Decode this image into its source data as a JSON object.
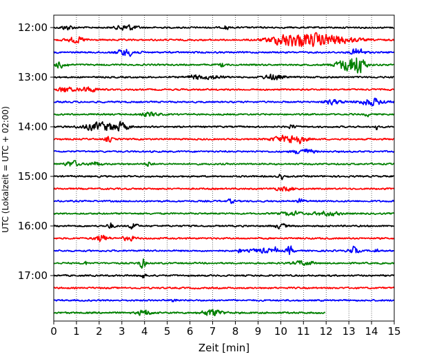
{
  "chart_data": {
    "type": "line",
    "chart_kind": "helicorder / seismogram drum plot",
    "title": "",
    "xlabel": "Zeit  [min]",
    "ylabel": "UTC (Lokalzeit = UTC + 02:00)",
    "xlim": [
      0,
      15
    ],
    "x_ticks": [
      "0",
      "1",
      "2",
      "3",
      "4",
      "5",
      "6",
      "7",
      "8",
      "9",
      "10",
      "11",
      "12",
      "13",
      "14",
      "15"
    ],
    "y_tick_labels": [
      "12:00",
      "13:00",
      "14:00",
      "15:00",
      "16:00",
      "17:00"
    ],
    "vertical_grid": "dotted, every 1 min",
    "trace_interval_minutes": 15,
    "trace_start": "12:00",
    "trace_colors": [
      "#000000",
      "#ff0000",
      "#0000ff",
      "#008000"
    ],
    "rows": [
      {
        "start": "12:00",
        "color": "#000000",
        "end_min": 15,
        "events": [
          [
            3.2,
            0.3,
            1.8
          ],
          [
            7.6,
            0.05,
            2.6
          ],
          [
            0.6,
            0.2,
            1.3
          ]
        ]
      },
      {
        "start": "12:15",
        "color": "#ff0000",
        "end_min": 15,
        "events": [
          [
            11.8,
            0.9,
            3.5
          ],
          [
            10.3,
            0.6,
            3.0
          ],
          [
            1.0,
            0.3,
            1.6
          ]
        ]
      },
      {
        "start": "12:30",
        "color": "#0000ff",
        "end_min": 15,
        "events": [
          [
            3.2,
            0.3,
            2.0
          ],
          [
            13.4,
            0.2,
            2.5
          ]
        ]
      },
      {
        "start": "12:45",
        "color": "#008000",
        "end_min": 15,
        "events": [
          [
            13.0,
            0.4,
            3.5
          ],
          [
            13.4,
            0.2,
            4.5
          ],
          [
            0.3,
            0.2,
            1.8
          ],
          [
            7.4,
            0.05,
            1.8
          ]
        ]
      },
      {
        "start": "13:00",
        "color": "#000000",
        "end_min": 15,
        "events": [
          [
            9.7,
            0.3,
            1.6
          ],
          [
            6.2,
            0.2,
            1.4
          ],
          [
            7.0,
            0.3,
            1.2
          ]
        ]
      },
      {
        "start": "13:15",
        "color": "#ff0000",
        "end_min": 15,
        "events": [
          [
            0.5,
            0.2,
            1.8
          ],
          [
            1.5,
            0.3,
            1.5
          ]
        ]
      },
      {
        "start": "13:30",
        "color": "#0000ff",
        "end_min": 15,
        "events": [
          [
            14.0,
            0.4,
            2.0
          ],
          [
            12.3,
            0.3,
            1.3
          ]
        ]
      },
      {
        "start": "13:45",
        "color": "#008000",
        "end_min": 15,
        "events": [
          [
            13.8,
            0.05,
            1.5
          ],
          [
            4.2,
            0.3,
            1.2
          ]
        ]
      },
      {
        "start": "14:00",
        "color": "#000000",
        "end_min": 15,
        "events": [
          [
            2.0,
            0.5,
            2.4
          ],
          [
            2.9,
            0.3,
            2.0
          ],
          [
            14.2,
            0.05,
            1.8
          ],
          [
            10.5,
            0.1,
            1.3
          ]
        ]
      },
      {
        "start": "14:15",
        "color": "#ff0000",
        "end_min": 15,
        "events": [
          [
            10.7,
            0.3,
            2.2
          ],
          [
            10.1,
            0.4,
            1.5
          ],
          [
            2.4,
            0.1,
            1.8
          ]
        ]
      },
      {
        "start": "14:30",
        "color": "#0000ff",
        "end_min": 15,
        "events": [
          [
            11.0,
            0.3,
            1.6
          ]
        ]
      },
      {
        "start": "14:45",
        "color": "#008000",
        "end_min": 15,
        "events": [
          [
            0.8,
            0.2,
            1.8
          ],
          [
            4.2,
            0.1,
            1.4
          ],
          [
            1.8,
            0.2,
            1.2
          ]
        ]
      },
      {
        "start": "15:00",
        "color": "#000000",
        "end_min": 15,
        "events": [
          [
            10.0,
            0.05,
            2.6
          ]
        ]
      },
      {
        "start": "15:15",
        "color": "#ff0000",
        "end_min": 15,
        "events": [
          [
            10.2,
            0.3,
            1.2
          ]
        ]
      },
      {
        "start": "15:30",
        "color": "#0000ff",
        "end_min": 15,
        "events": [
          [
            10.9,
            0.1,
            1.5
          ],
          [
            7.8,
            0.1,
            1.2
          ]
        ]
      },
      {
        "start": "15:45",
        "color": "#008000",
        "end_min": 15,
        "events": [
          [
            10.5,
            0.3,
            1.2
          ],
          [
            12.0,
            0.4,
            1.2
          ]
        ]
      },
      {
        "start": "16:00",
        "color": "#000000",
        "end_min": 15,
        "events": [
          [
            3.5,
            0.1,
            2.6
          ],
          [
            2.5,
            0.1,
            1.8
          ],
          [
            10.0,
            0.2,
            1.2
          ]
        ]
      },
      {
        "start": "16:15",
        "color": "#ff0000",
        "end_min": 15,
        "events": [
          [
            2.1,
            0.2,
            2.2
          ],
          [
            3.3,
            0.2,
            1.3
          ]
        ]
      },
      {
        "start": "16:30",
        "color": "#0000ff",
        "end_min": 15,
        "events": [
          [
            10.4,
            0.1,
            2.6
          ],
          [
            13.2,
            0.15,
            2.2
          ],
          [
            9.8,
            0.05,
            2.0
          ],
          [
            14.2,
            0.05,
            1.8
          ],
          [
            8.2,
            0.05,
            1.6
          ],
          [
            9.2,
            0.4,
            1.2
          ]
        ]
      },
      {
        "start": "16:45",
        "color": "#008000",
        "end_min": 15,
        "events": [
          [
            3.9,
            0.1,
            3.2
          ],
          [
            11.0,
            0.3,
            1.3
          ],
          [
            1.4,
            0.05,
            1.3
          ]
        ]
      },
      {
        "start": "17:00",
        "color": "#000000",
        "end_min": 15,
        "events": [
          [
            3.9,
            0.1,
            1.5
          ]
        ]
      },
      {
        "start": "17:15",
        "color": "#ff0000",
        "end_min": 15,
        "events": []
      },
      {
        "start": "17:30",
        "color": "#0000ff",
        "end_min": 15,
        "events": [
          [
            5.3,
            0.1,
            1.2
          ]
        ]
      },
      {
        "start": "17:45",
        "color": "#008000",
        "end_min": 11.95,
        "events": [
          [
            7.0,
            0.3,
            2.0
          ],
          [
            4.0,
            0.2,
            1.6
          ]
        ]
      }
    ]
  }
}
